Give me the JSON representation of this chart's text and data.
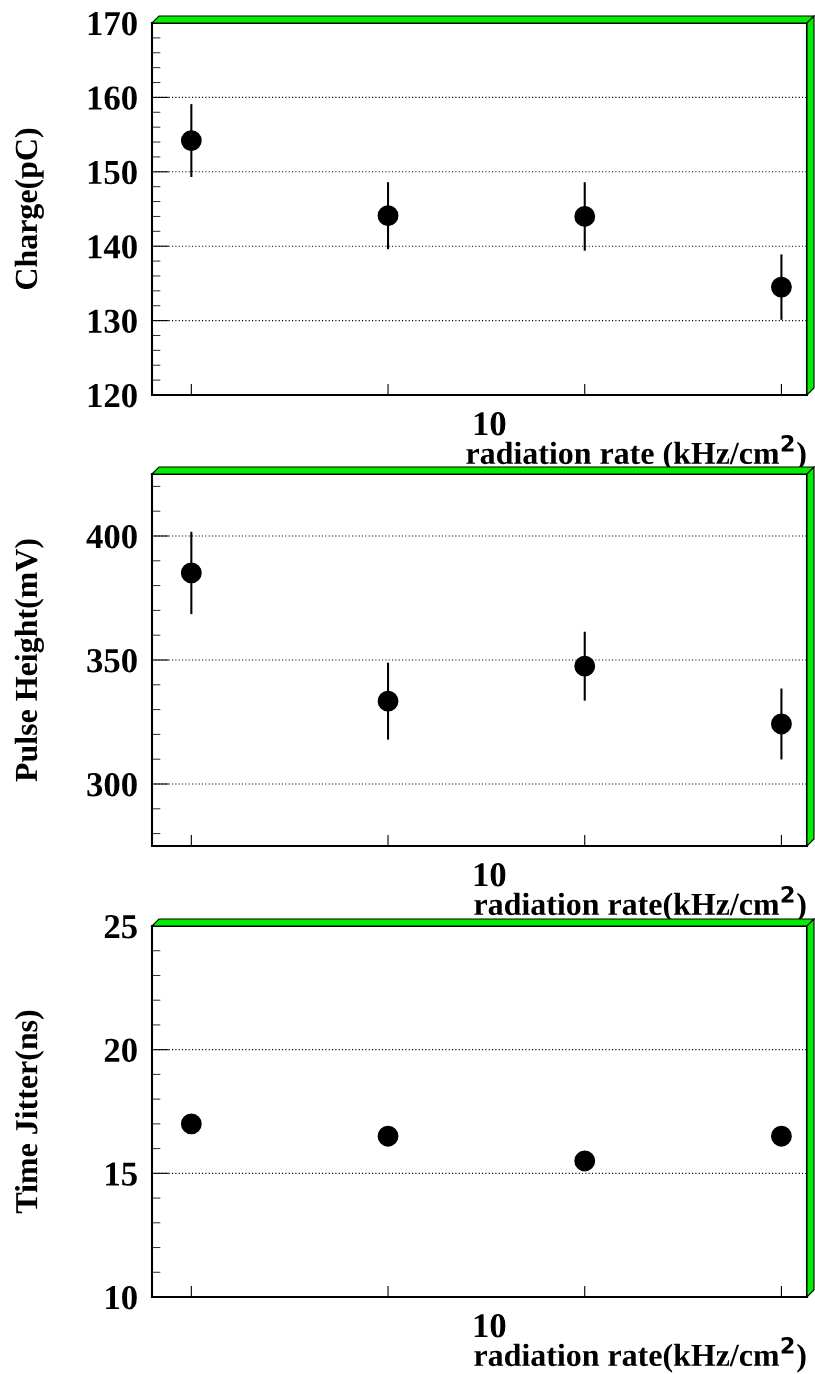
{
  "chart_data": [
    {
      "type": "scatter",
      "ylabel": "Charge(pC)",
      "xlabel": "radiation rate (kHz/cm$^{2}$)",
      "categories": [
        null,
        null,
        null,
        null
      ],
      "values": [
        154.2,
        144.1,
        144.0,
        134.5
      ],
      "errors": [
        4.9,
        4.5,
        4.6,
        4.4
      ],
      "color": "#000000",
      "marker": "circle",
      "annotations": [
        "10"
      ],
      "ylim": [
        120,
        170
      ],
      "yticks": [
        120,
        130,
        140,
        150,
        160,
        170
      ],
      "grid": "y"
    },
    {
      "type": "scatter",
      "ylabel": "Pulse Height(mV)",
      "xlabel": "radiation rate(kHz/cm$^{2}$)",
      "categories": [
        null,
        null,
        null,
        null
      ],
      "values": [
        385.1,
        333.4,
        347.5,
        324.2
      ],
      "errors": [
        16.6,
        15.5,
        13.9,
        14.3
      ],
      "color": "#000000",
      "marker": "circle",
      "annotations": [
        "10"
      ],
      "ylim": [
        275,
        425
      ],
      "yticks": [
        300,
        350,
        400
      ],
      "grid": "y"
    },
    {
      "type": "scatter",
      "ylabel": "Time Jitter(ns)",
      "xlabel": "radiation rate(kHz/cm$^{2}$)",
      "categories": [
        null,
        null,
        null,
        null
      ],
      "values": [
        17.0,
        16.5,
        15.5,
        16.5
      ],
      "color": "#000000",
      "marker": "circle",
      "annotations": [
        "10"
      ],
      "ylim": [
        10,
        25
      ],
      "yticks": [
        10,
        15,
        20,
        25
      ],
      "grid": "y"
    }
  ]
}
